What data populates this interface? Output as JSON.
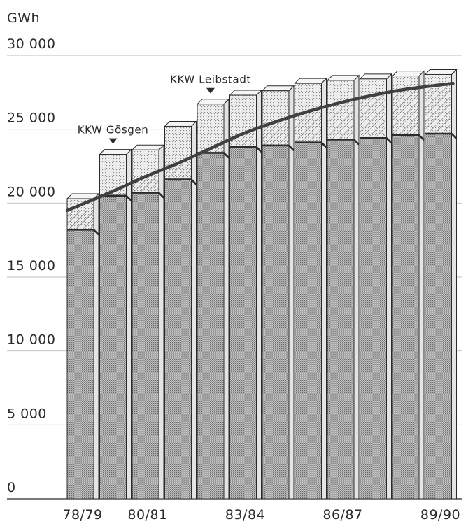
{
  "chart_data": {
    "type": "bar",
    "ylabel": "GWh",
    "ylim": [
      0,
      30000
    ],
    "y_ticks": [
      0,
      5000,
      10000,
      15000,
      20000,
      25000,
      30000
    ],
    "y_tick_labels": [
      "0",
      "5 000",
      "10 000",
      "15 000",
      "20 000",
      "25 000",
      "30 000"
    ],
    "categories": [
      "78/79",
      "79/80",
      "80/81",
      "81/82",
      "82/83",
      "83/84",
      "84/85",
      "85/86",
      "86/87",
      "87/88",
      "88/89",
      "89/90"
    ],
    "shown_x_labels": [
      "78/79",
      "",
      "80/81",
      "",
      "",
      "83/84",
      "",
      "",
      "86/87",
      "",
      "",
      "89/90"
    ],
    "series": [
      {
        "values": [
          18200,
          20500,
          20700,
          21600,
          23400,
          23800,
          23900,
          24100,
          24300,
          24400,
          24600,
          24700
        ]
      },
      {
        "values": [
          20300,
          23300,
          23600,
          25200,
          26700,
          27300,
          27600,
          28100,
          28300,
          28400,
          28600,
          28700
        ]
      },
      {
        "values": [
          19500,
          20800,
          21800,
          22700,
          23700,
          24700,
          25500,
          26200,
          26800,
          27300,
          27700,
          28100
        ]
      }
    ],
    "annotations": [
      {
        "text": "KKW Gösgen",
        "category": "79/80"
      },
      {
        "text": "KKW Leibstadt",
        "category": "82/83"
      }
    ],
    "grid": "horizontal",
    "legend": "none"
  },
  "colors": {
    "ink": "#2b2b2b",
    "grid": "#bdbdbd",
    "shade_light": "#eaeaea",
    "shade_dark": "#bfbfbf",
    "curve": "#404040"
  }
}
